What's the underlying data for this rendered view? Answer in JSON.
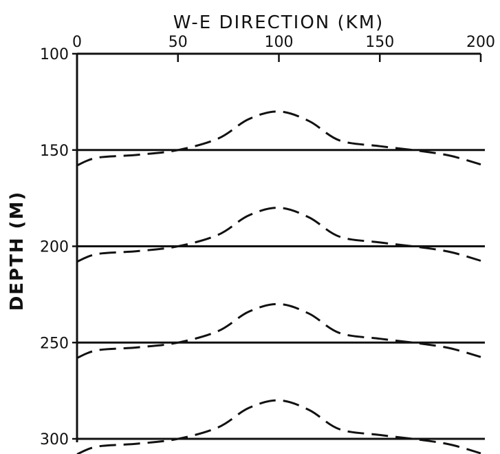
{
  "chart_data": {
    "type": "line",
    "title": "",
    "xlabel": "W-E DIRECTION   (KM)",
    "ylabel": "DEPTH (M)",
    "xlim": [
      0,
      200
    ],
    "ylim": [
      100,
      300
    ],
    "y_inverted": true,
    "x_axis_position": "top",
    "xticks": [
      "0",
      "50",
      "100",
      "150",
      "200"
    ],
    "yticks": [
      "100",
      "150",
      "200",
      "250",
      "300"
    ],
    "xtick_values": [
      0,
      50,
      100,
      150,
      200
    ],
    "ytick_values": [
      100,
      150,
      200,
      250,
      300
    ],
    "grid": false,
    "series": [
      {
        "style": "solid",
        "x": [
          0,
          200
        ],
        "y": [
          150,
          150
        ]
      },
      {
        "style": "dashed",
        "x": [
          0,
          10,
          30,
          50,
          70,
          85,
          100,
          115,
          130,
          150,
          170,
          185,
          200
        ],
        "y": [
          158,
          154,
          152.5,
          150,
          144,
          134,
          130,
          135,
          145,
          148,
          150.5,
          153,
          157.5
        ]
      },
      {
        "style": "solid",
        "x": [
          0,
          200
        ],
        "y": [
          200,
          200
        ]
      },
      {
        "style": "dashed",
        "x": [
          0,
          10,
          30,
          50,
          70,
          85,
          100,
          115,
          130,
          150,
          170,
          185,
          200
        ],
        "y": [
          208,
          204,
          202.5,
          200,
          194,
          184,
          180,
          185,
          195,
          198,
          200.5,
          203,
          207.5
        ]
      },
      {
        "style": "solid",
        "x": [
          0,
          200
        ],
        "y": [
          250,
          250
        ]
      },
      {
        "style": "dashed",
        "x": [
          0,
          10,
          30,
          50,
          70,
          85,
          100,
          115,
          130,
          150,
          170,
          185,
          200
        ],
        "y": [
          258,
          254,
          252.5,
          250,
          244,
          234,
          230,
          235,
          245,
          248,
          250.5,
          253,
          257.5
        ]
      },
      {
        "style": "solid",
        "x": [
          0,
          200
        ],
        "y": [
          300,
          300
        ]
      },
      {
        "style": "dashed",
        "x": [
          0,
          10,
          30,
          50,
          70,
          85,
          100,
          115,
          130,
          150,
          170,
          185,
          200
        ],
        "y": [
          308,
          304,
          302.5,
          300,
          294,
          284,
          280,
          285,
          295,
          298,
          300.5,
          303,
          307.5
        ]
      }
    ]
  }
}
